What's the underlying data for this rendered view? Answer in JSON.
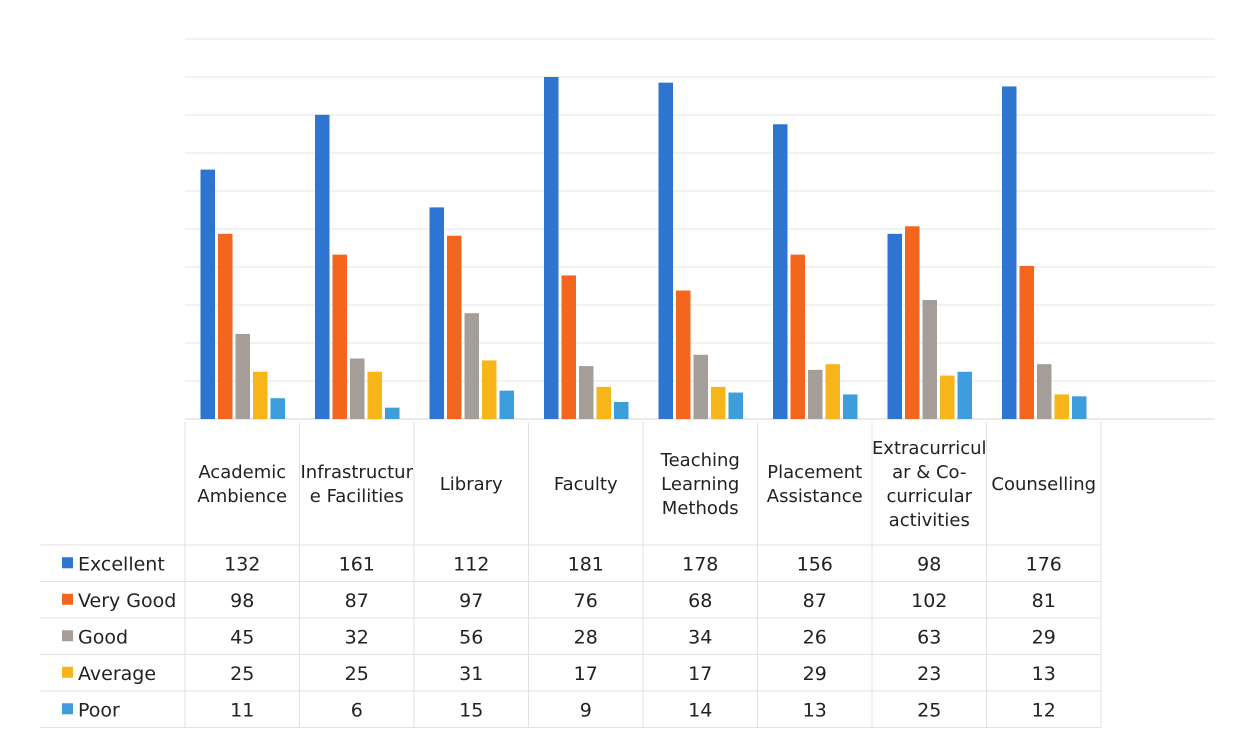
{
  "chart_data": {
    "type": "bar",
    "categories": [
      [
        "Academic",
        "Ambience"
      ],
      [
        "Infrastructur",
        "e Facilities"
      ],
      [
        "Library"
      ],
      [
        "Faculty"
      ],
      [
        "Teaching",
        "Learning",
        "Methods"
      ],
      [
        "Placement",
        "Assistance"
      ],
      [
        "Extracurricul",
        "ar & Co-",
        "curricular",
        "activities"
      ],
      [
        "Counselling"
      ]
    ],
    "series": [
      {
        "name": "Excellent",
        "color": "#2E75D2",
        "values": [
          132,
          161,
          112,
          181,
          178,
          156,
          98,
          176
        ]
      },
      {
        "name": "Very Good",
        "color": "#F4661D",
        "values": [
          98,
          87,
          97,
          76,
          68,
          87,
          102,
          81
        ]
      },
      {
        "name": "Good",
        "color": "#A59D97",
        "values": [
          45,
          32,
          56,
          28,
          34,
          26,
          63,
          29
        ]
      },
      {
        "name": "Average",
        "color": "#F7B519",
        "values": [
          25,
          25,
          31,
          17,
          17,
          29,
          23,
          13
        ]
      },
      {
        "name": "Poor",
        "color": "#3E9DDC",
        "values": [
          11,
          6,
          15,
          9,
          14,
          13,
          25,
          12
        ]
      }
    ],
    "ylim": [
      0,
      181
    ],
    "grid": true,
    "legend": "data-table",
    "data_table": true
  }
}
